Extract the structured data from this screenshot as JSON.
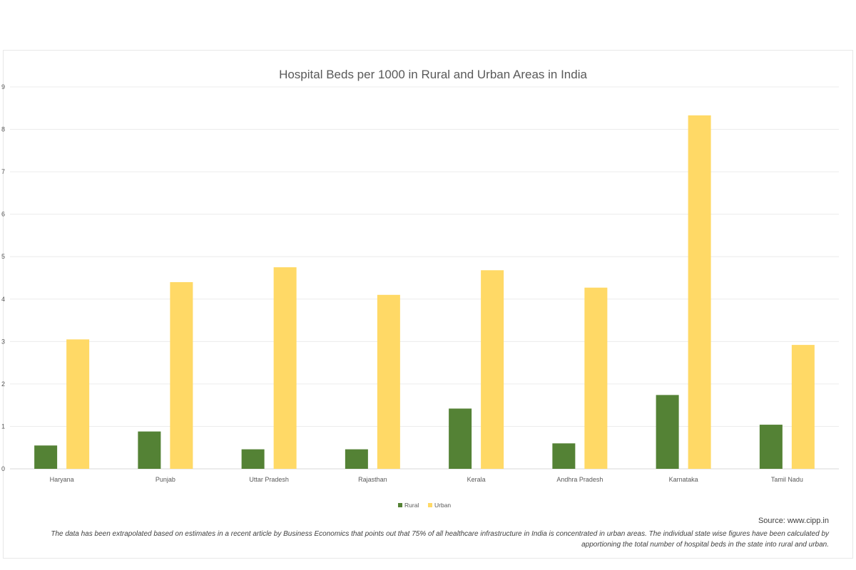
{
  "chart_data": {
    "type": "bar",
    "title": "Hospital Beds per 1000 in Rural and Urban Areas in India",
    "categories": [
      "Haryana",
      "Punjab",
      "Uttar Pradesh",
      "Rajasthan",
      "Kerala",
      "Andhra Pradesh",
      "Karnataka",
      "Tamil Nadu"
    ],
    "series": [
      {
        "name": "Rural",
        "color": "#548235",
        "values": [
          0.55,
          0.88,
          0.46,
          0.46,
          1.42,
          0.6,
          1.74,
          1.04
        ]
      },
      {
        "name": "Urban",
        "color": "#FFD966",
        "values": [
          3.05,
          4.4,
          4.75,
          4.1,
          4.68,
          4.27,
          8.33,
          2.92
        ]
      }
    ],
    "ylim": [
      0,
      9
    ],
    "yticks": [
      "0",
      "1",
      "2",
      "3",
      "4",
      "5",
      "6",
      "7",
      "8",
      "9"
    ],
    "grid": true,
    "legend_position": "bottom"
  },
  "source": "Source: www.cipp.in",
  "note": "The data has been extrapolated based on estimates in a recent article by Business Economics that points out that 75% of all healthcare infrastructure in India is concentrated in urban areas. The individual state wise figures have been calculated by apportioning the total number of hospital beds in the state into rural and urban."
}
